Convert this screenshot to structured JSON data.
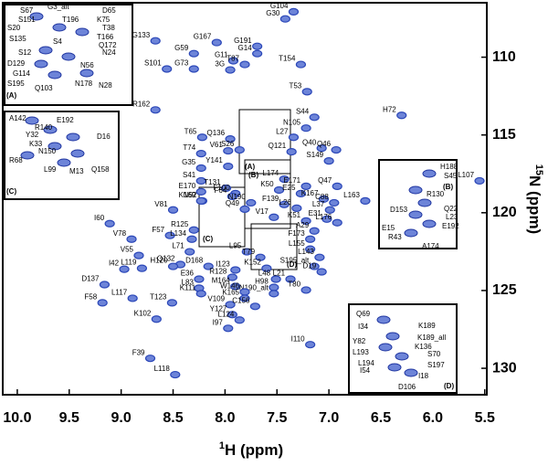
{
  "chart_data": {
    "type": "scatter",
    "xlabel_sup": "1",
    "xlabel": "H (ppm)",
    "ylabel_sup": "15",
    "ylabel": "N (ppm)",
    "xlim": [
      10.14,
      5.48
    ],
    "ylim": [
      106.5,
      131.7
    ],
    "xticks": [
      {
        "value": 10.0,
        "label": "10.0"
      },
      9.5,
      {
        "value": 9.0,
        "label": "9.0"
      },
      8.5,
      {
        "value": 8.0,
        "label": "8.0"
      },
      7.5,
      {
        "value": 7.0,
        "label": "7.0"
      },
      6.5,
      {
        "value": 6.0,
        "label": "6.0"
      },
      5.5
    ],
    "yticks": [
      110,
      115,
      120,
      125,
      130
    ],
    "color": "#2b47b8",
    "peaks": {
      "labels": [
        "G104",
        "G30",
        "G133",
        "G167",
        "G191",
        "G59",
        "G14",
        "G11",
        "T87",
        "S101",
        "G73",
        "3G",
        "T154",
        "R162",
        "T53",
        "S44",
        "H72",
        "N105",
        "T65",
        "Q136",
        "L27",
        "V61",
        "S26",
        "Q40",
        "Q46",
        "Q121",
        "T74",
        "S149",
        "Y141",
        "G35",
        "S41",
        "L174",
        "E171",
        "Q47",
        "L107",
        "T131",
        "E170",
        "K50",
        "E25",
        "K167",
        "N52",
        "F100",
        "F64",
        "K169",
        "N190",
        "C88",
        "F139",
        "L163",
        "L26",
        "L37",
        "Q49",
        "V81",
        "E31",
        "V17",
        "K51",
        "L176",
        "I60",
        "F57",
        "R125",
        "A29",
        "F173",
        "V78",
        "L134",
        "L155",
        "V55",
        "L71",
        "L95",
        "T79",
        "L143",
        "S195_alt",
        "Q132",
        "D168",
        "I123",
        "K152",
        "D19",
        "I42",
        "L119",
        "H120",
        "L48",
        "L21",
        "E36",
        "R128",
        "L83",
        "M164",
        "H98",
        "N190_alt",
        "T80",
        "K111",
        "W146",
        "D137",
        "K165",
        "L117",
        "T123",
        "V109",
        "F58",
        "C156",
        "Y127",
        "L124",
        "K102",
        "I97",
        "I110",
        "F39",
        "L118"
      ],
      "x": [
        7.34,
        7.42,
        8.67,
        8.08,
        7.69,
        8.3,
        7.69,
        7.92,
        7.81,
        8.56,
        8.3,
        7.95,
        7.27,
        8.67,
        7.21,
        7.14,
        6.3,
        7.22,
        8.22,
        7.95,
        7.34,
        7.97,
        7.86,
        7.07,
        6.93,
        7.36,
        8.23,
        7.0,
        7.97,
        8.23,
        8.23,
        7.43,
        7.22,
        6.92,
        5.55,
        7.99,
        8.23,
        7.48,
        7.27,
        7.05,
        8.22,
        7.9,
        7.93,
        8.23,
        7.75,
        6.95,
        7.43,
        6.65,
        7.31,
        6.99,
        7.81,
        8.5,
        7.02,
        7.53,
        7.22,
        6.92,
        9.11,
        8.53,
        8.3,
        7.14,
        7.18,
        8.9,
        8.32,
        7.18,
        8.83,
        8.34,
        7.79,
        7.66,
        7.09,
        7.14,
        8.43,
        8.16,
        7.9,
        7.6,
        7.07,
        8.97,
        8.8,
        8.5,
        7.51,
        7.37,
        8.25,
        7.93,
        8.25,
        7.9,
        7.53,
        7.53,
        7.22,
        8.23,
        7.81,
        9.16,
        7.81,
        8.89,
        8.51,
        7.95,
        9.18,
        7.71,
        7.93,
        7.86,
        8.66,
        7.97,
        7.18,
        8.72,
        8.48
      ],
      "y": [
        107.08,
        107.54,
        108.95,
        109.06,
        109.3,
        109.77,
        109.77,
        110.23,
        110.47,
        110.76,
        110.76,
        110.82,
        110.47,
        113.39,
        112.22,
        113.86,
        113.74,
        114.56,
        115.15,
        115.26,
        115.15,
        116.02,
        115.96,
        115.85,
        115.96,
        116.08,
        116.2,
        116.67,
        117.02,
        117.13,
        117.95,
        117.84,
        118.3,
        118.3,
        117.95,
        118.42,
        118.65,
        118.54,
        118.77,
        119.12,
        119.24,
        118.77,
        118.95,
        119.24,
        119.36,
        119.36,
        119.47,
        119.24,
        119.71,
        119.82,
        119.77,
        119.82,
        120.41,
        120.29,
        120.53,
        120.64,
        120.7,
        121.46,
        121.11,
        121.17,
        121.7,
        121.7,
        121.7,
        122.34,
        122.75,
        122.51,
        122.51,
        122.87,
        122.87,
        123.45,
        123.33,
        123.45,
        123.68,
        123.57,
        123.8,
        123.63,
        123.57,
        123.45,
        124.27,
        124.27,
        124.27,
        124.15,
        124.85,
        124.74,
        124.8,
        125.2,
        124.97,
        125.2,
        125.09,
        124.62,
        125.5,
        125.5,
        125.79,
        125.91,
        125.79,
        126.02,
        126.55,
        126.9,
        126.84,
        127.43,
        128.48,
        129.36,
        130.41
      ]
    },
    "region_labels": [
      "(A)",
      "(B)",
      "(C)",
      "(D)"
    ],
    "insets": [
      {
        "tag": "(A)",
        "labels": [
          "S67",
          "G3_alt",
          "D65",
          "S151",
          "T196",
          "K75",
          "S20",
          "T38",
          "S135",
          "T166",
          "S4",
          "Q172",
          "S12",
          "N24",
          "D129",
          "G114",
          "N56",
          "S195",
          "Q103",
          "N178",
          "N28"
        ]
      },
      {
        "tag": "(C)",
        "labels": [
          "A142",
          "E192",
          "R140",
          "Y32",
          "D16",
          "K33",
          "N150",
          "R68",
          "L99",
          "M13",
          "Q158"
        ]
      },
      {
        "tag": "(B)",
        "labels": [
          "H188",
          "S45",
          "R130",
          "D153",
          "Q22",
          "L23",
          "E15",
          "E192",
          "R43",
          "A174"
        ]
      },
      {
        "tag": "(D)",
        "labels": [
          "Q69",
          "K189",
          "I34",
          "Y82",
          "K189_all",
          "L193",
          "K136",
          "L194",
          "S70",
          "I54",
          "S197",
          "I18",
          "D106"
        ]
      }
    ]
  }
}
